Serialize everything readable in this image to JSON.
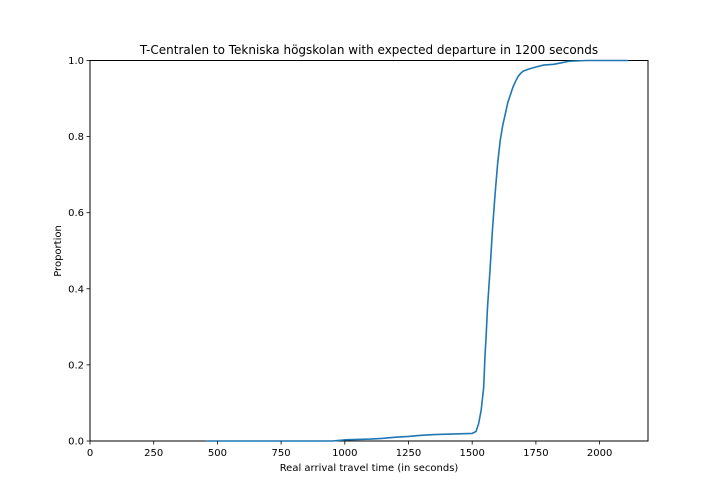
{
  "chart_data": {
    "type": "line",
    "title": "T-Centralen to Tekniska högskolan with expected departure in 1200 seconds",
    "xlabel": "Real arrival travel time (in seconds)",
    "ylabel": "Proportion",
    "xlim": [
      0,
      2190
    ],
    "ylim": [
      0,
      1.0
    ],
    "xticks": [
      0,
      250,
      500,
      750,
      1000,
      1250,
      1500,
      1750,
      2000
    ],
    "yticks": [
      0.0,
      0.2,
      0.4,
      0.6,
      0.8,
      1.0
    ],
    "xtick_labels": [
      "0",
      "250",
      "500",
      "750",
      "1000",
      "1250",
      "1500",
      "1750",
      "2000"
    ],
    "ytick_labels": [
      "0.0",
      "0.2",
      "0.4",
      "0.6",
      "0.8",
      "1.0"
    ],
    "grid": false,
    "legend": "none",
    "series": [
      {
        "color": "#1f77b4",
        "x": [
          460,
          600,
          800,
          950,
          1000,
          1050,
          1100,
          1150,
          1200,
          1250,
          1300,
          1350,
          1400,
          1450,
          1500,
          1515,
          1525,
          1535,
          1545,
          1550,
          1555,
          1560,
          1570,
          1580,
          1590,
          1600,
          1610,
          1620,
          1630,
          1640,
          1650,
          1660,
          1670,
          1680,
          1690,
          1700,
          1720,
          1750,
          1780,
          1820,
          1850,
          1880,
          1950,
          2000,
          2050,
          2110
        ],
        "y": [
          0.0,
          0.0,
          0.0,
          0.0,
          0.003,
          0.004,
          0.005,
          0.007,
          0.01,
          0.012,
          0.015,
          0.017,
          0.018,
          0.019,
          0.02,
          0.025,
          0.045,
          0.08,
          0.14,
          0.22,
          0.28,
          0.35,
          0.45,
          0.56,
          0.65,
          0.73,
          0.79,
          0.83,
          0.86,
          0.89,
          0.91,
          0.93,
          0.945,
          0.958,
          0.966,
          0.972,
          0.977,
          0.983,
          0.988,
          0.99,
          0.994,
          0.998,
          1.0,
          1.0,
          1.0,
          1.0
        ]
      }
    ]
  }
}
